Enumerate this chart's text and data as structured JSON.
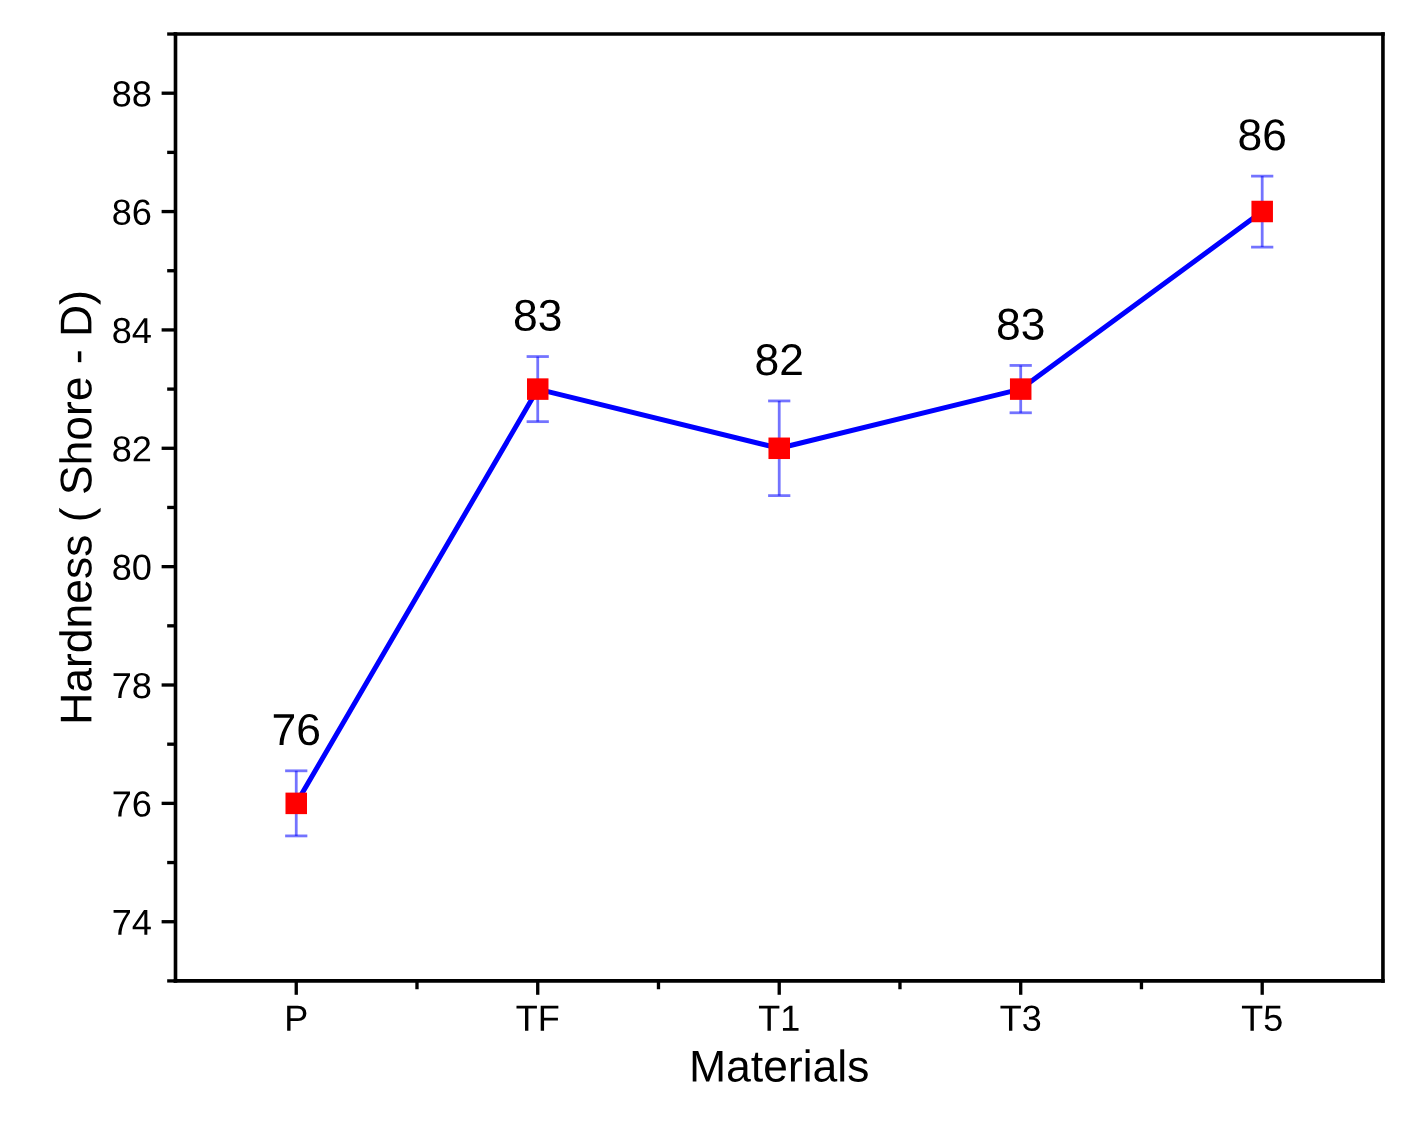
{
  "chart_data": {
    "type": "line",
    "xlabel": "Materials",
    "ylabel": "Hardness ( Shore - D)",
    "categories": [
      "P",
      "TF",
      "T1",
      "T3",
      "T5"
    ],
    "series": [
      {
        "color": "#0000ff",
        "colors": [
          "#ff0000",
          "#ff0000",
          "#ff0000",
          "#ff0000",
          "#ff0000"
        ],
        "values": [
          76,
          83,
          82,
          83,
          86
        ],
        "errors": [
          0.55,
          0.55,
          0.8,
          0.4,
          0.6
        ]
      }
    ],
    "ylim": [
      73,
      89
    ],
    "yticks": [
      {
        "value": 73,
        "label": null
      },
      74,
      {
        "value": 75,
        "label": null
      },
      76,
      {
        "value": 77,
        "label": null
      },
      78,
      {
        "value": 79,
        "label": null
      },
      80,
      {
        "value": 81,
        "label": null
      },
      82,
      {
        "value": 83,
        "label": null
      },
      84,
      {
        "value": 85,
        "label": null
      },
      86,
      {
        "value": 87,
        "label": null
      },
      88,
      {
        "value": 89,
        "label": null
      }
    ],
    "data_labels": true,
    "marker": "square",
    "line_style": "solid",
    "grid": false,
    "legend": false
  }
}
